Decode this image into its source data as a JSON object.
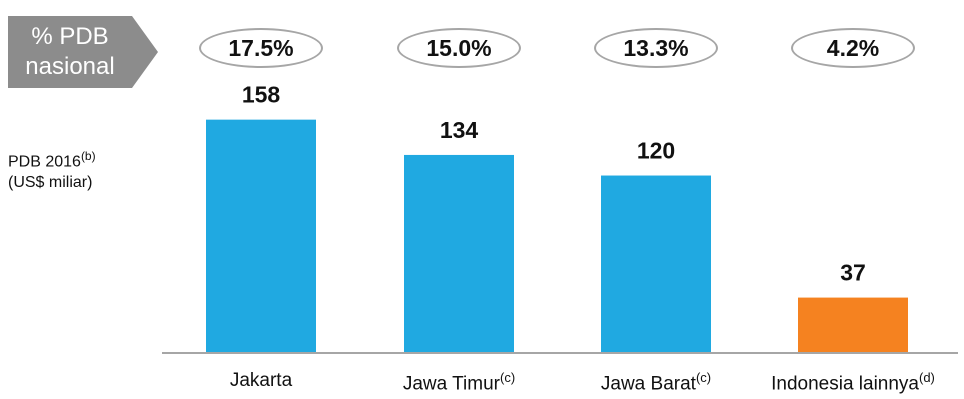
{
  "header": {
    "label_line1": "% PDB",
    "label_line2": "nasional",
    "label_fill": "#8c8c8c"
  },
  "ylabel": {
    "line1": "PDB 2016",
    "line1_sup": "(b)",
    "line2": "(US$ miliar)"
  },
  "chart_data": {
    "type": "bar",
    "categories": [
      "Jakarta",
      "Jawa Timur",
      "Jawa Barat",
      "Indonesia lainnya"
    ],
    "category_superscripts": [
      "",
      "(c)",
      "(c)",
      "(d)"
    ],
    "values": [
      158,
      134,
      120,
      37
    ],
    "shares": [
      "17.5%",
      "15.0%",
      "13.3%",
      "4.2%"
    ],
    "colors": [
      "#20a9e1",
      "#20a9e1",
      "#20a9e1",
      "#f58220"
    ],
    "ylabel": "PDB 2016(b) (US$ miliar)",
    "ylim": [
      0,
      170
    ],
    "grid": false,
    "legend": "none"
  }
}
